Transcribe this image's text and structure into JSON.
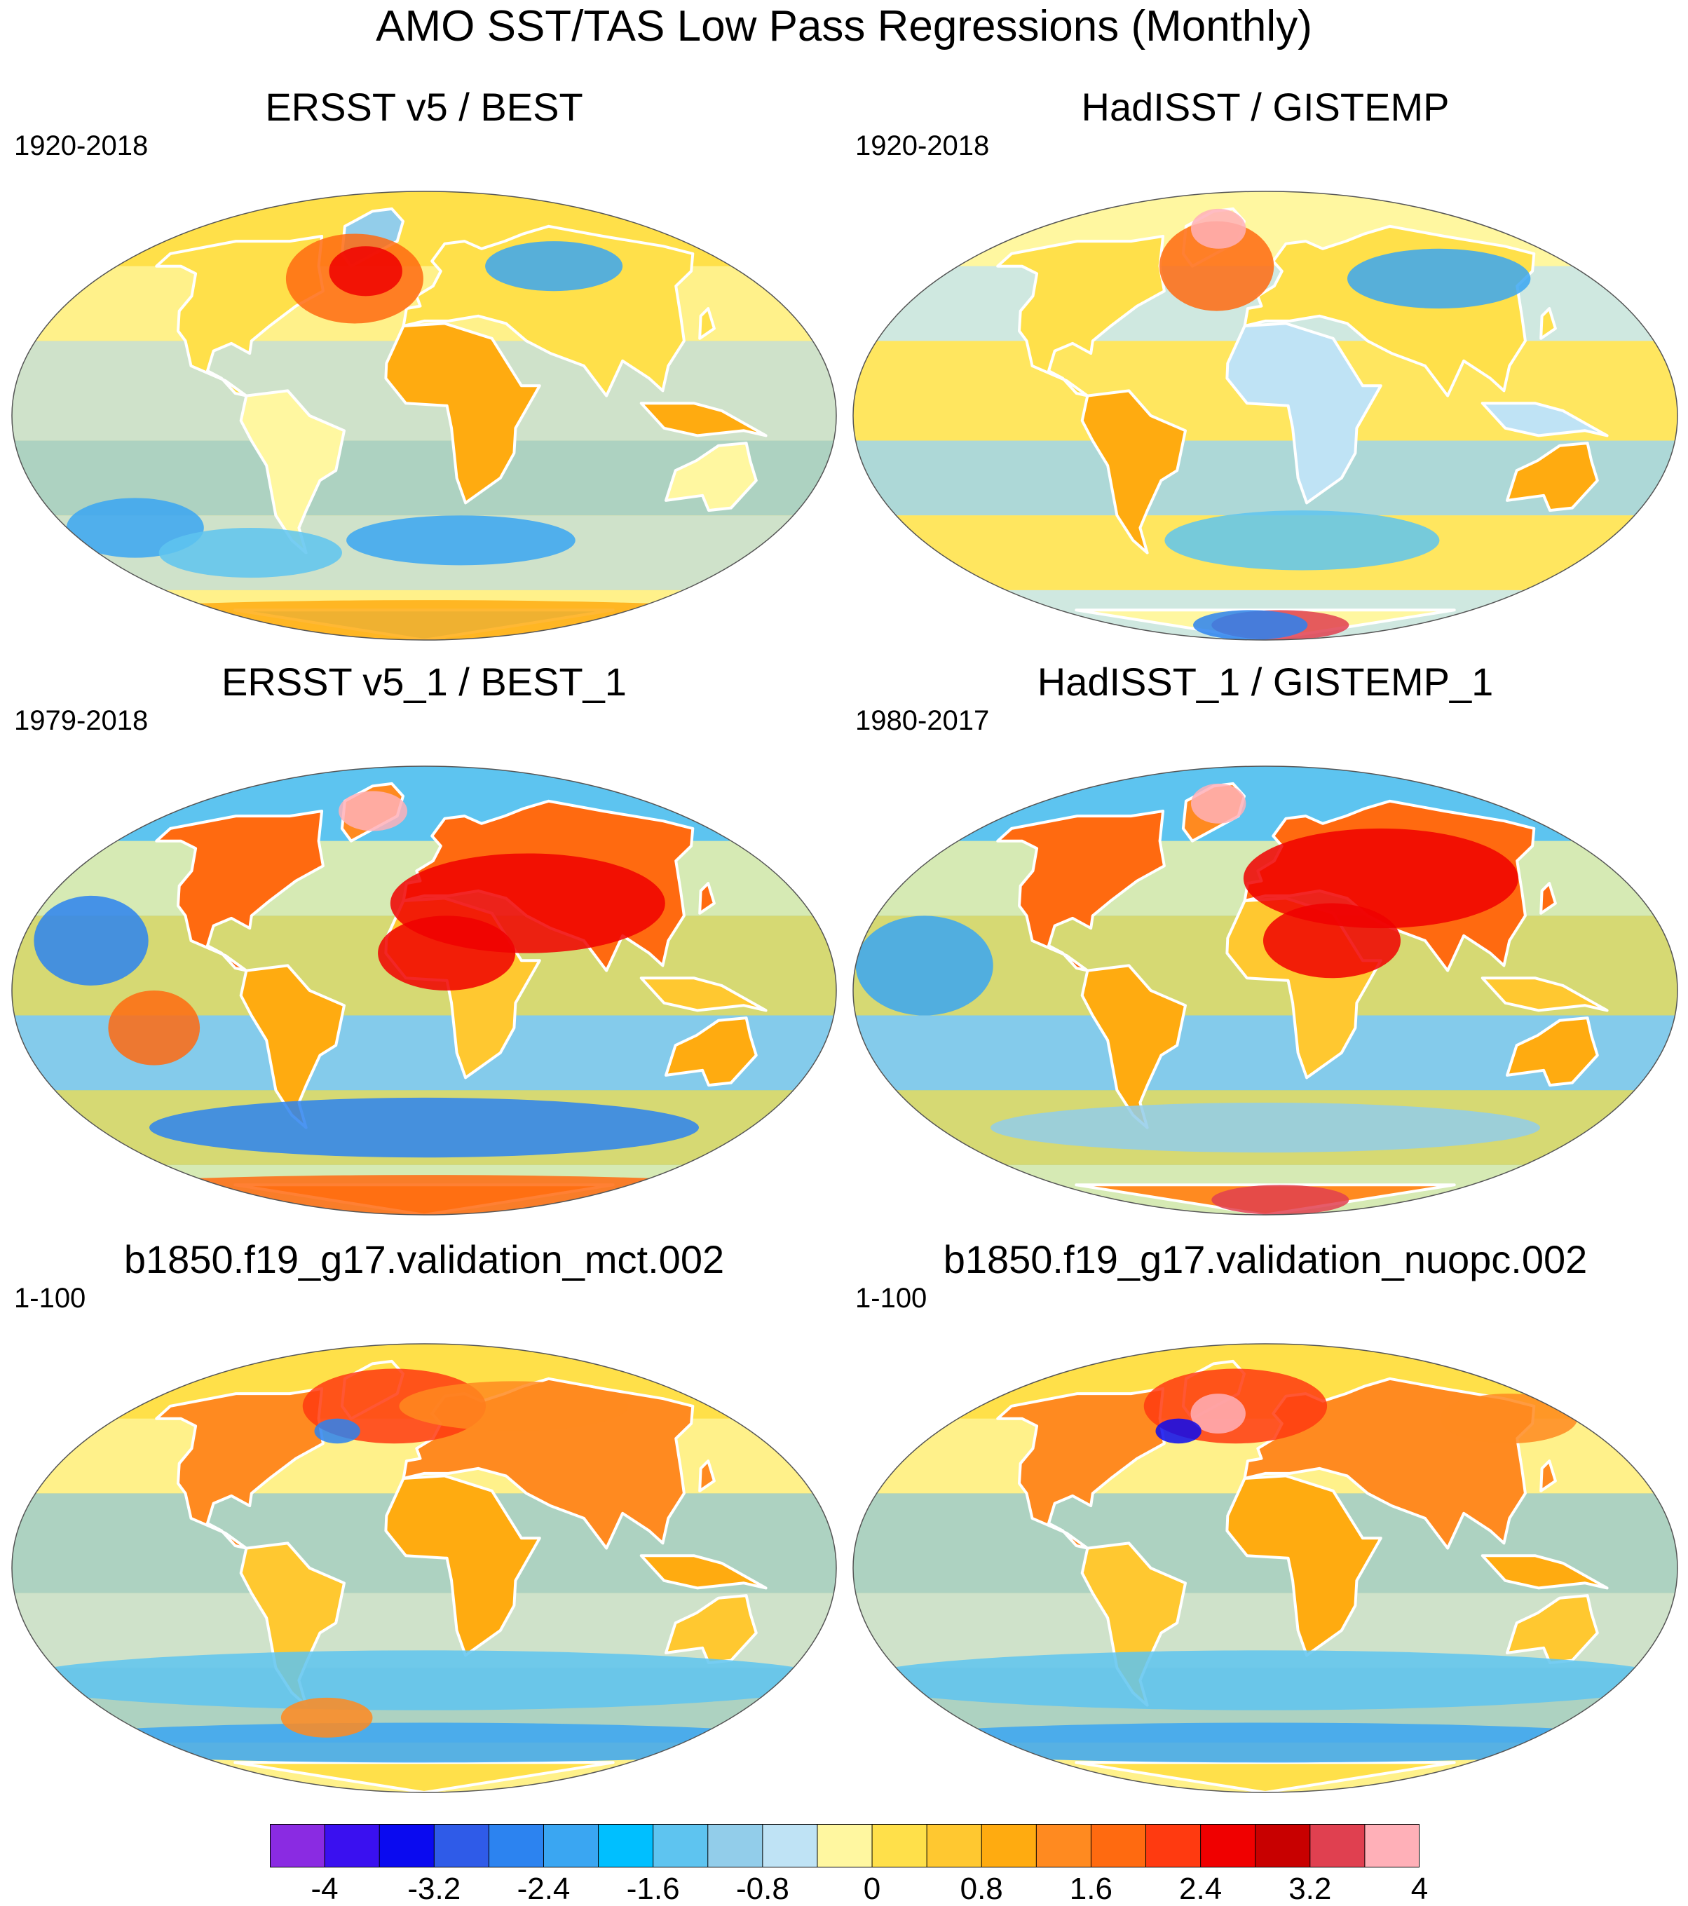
{
  "figure": {
    "title": "AMO SST/TAS Low Pass Regressions (Monthly)"
  },
  "panels": [
    {
      "title": "ERSST v5 / BEST",
      "period": "1920-2018"
    },
    {
      "title": "HadISST / GISTEMP",
      "period": "1920-2018"
    },
    {
      "title": "ERSST v5_1 / BEST_1",
      "period": "1979-2018"
    },
    {
      "title": "HadISST_1 / GISTEMP_1",
      "period": "1980-2017"
    },
    {
      "title": "b1850.f19_g17.validation_mct.002",
      "period": "1-100"
    },
    {
      "title": "b1850.f19_g17.validation_nuopc.002",
      "period": "1-100"
    }
  ],
  "colorbar": {
    "colors": [
      "#8a2be2",
      "#3a10f0",
      "#0a0af0",
      "#2f5be8",
      "#2c83f0",
      "#3aa6f2",
      "#00bfff",
      "#5ec4f0",
      "#92cdea",
      "#bfe3f5",
      "#fff7a0",
      "#ffe04a",
      "#ffc830",
      "#ffab10",
      "#ff8a20",
      "#ff6a10",
      "#ff3a10",
      "#f00000",
      "#c80000",
      "#e04050",
      "#ffb0b8"
    ],
    "tick_labels": [
      "-4",
      "-3.2",
      "-2.4",
      "-1.6",
      "-0.8",
      "0",
      "0.8",
      "1.6",
      "2.4",
      "3.2",
      "4"
    ]
  }
}
